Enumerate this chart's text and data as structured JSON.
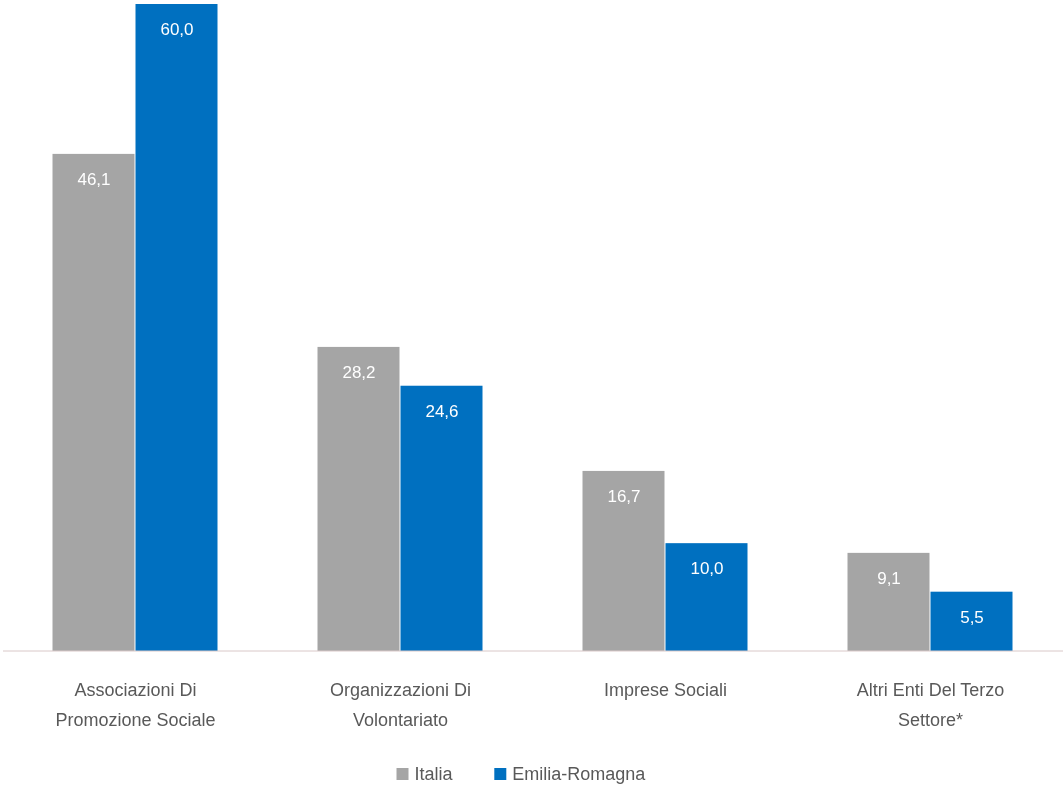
{
  "chart_data": {
    "type": "bar",
    "categories": [
      "Associazioni Di Promozione Sociale",
      "Organizzazioni Di Volontariato",
      "Imprese Sociali",
      "Altri Enti Del Terzo Settore*"
    ],
    "series": [
      {
        "name": "Italia",
        "color": "#a5a5a5",
        "values": [
          46.1,
          28.2,
          16.7,
          9.1
        ],
        "value_labels": [
          "46,1",
          "28,2",
          "16,7",
          "9,1"
        ]
      },
      {
        "name": "Emilia-Romagna",
        "color": "#0070c0",
        "values": [
          60.0,
          24.6,
          10.0,
          5.5
        ],
        "value_labels": [
          "60,0",
          "24,6",
          "10,0",
          "5,5"
        ]
      }
    ],
    "ylim": [
      0,
      60
    ],
    "legend": "bottom"
  }
}
